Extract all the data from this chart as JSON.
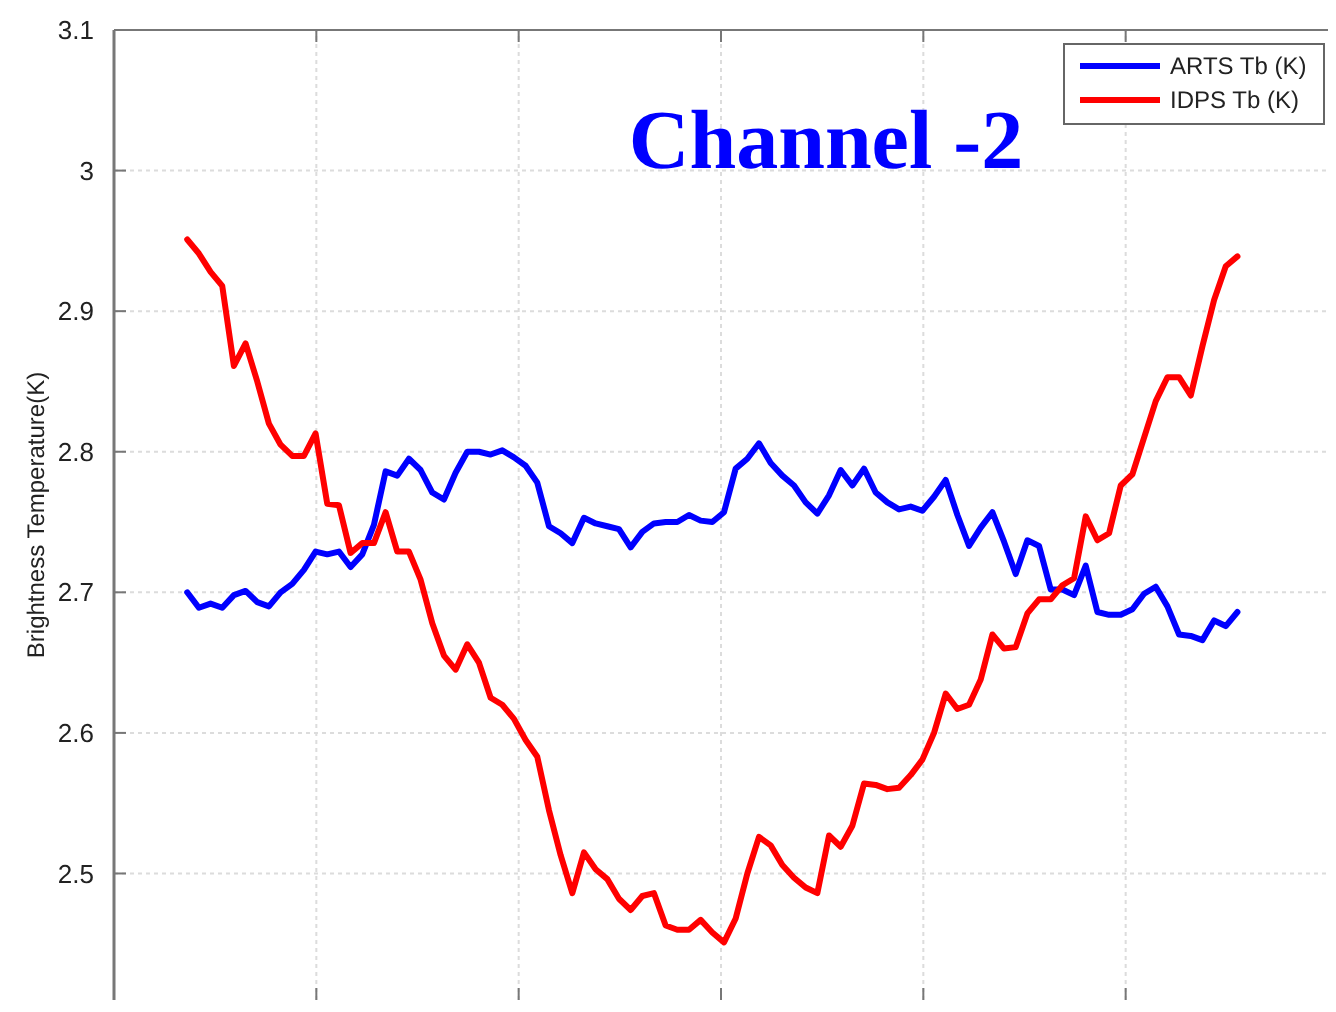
{
  "chart_data": {
    "type": "line",
    "title": "Channel -2",
    "ylabel": "Brightness Temperature(K)",
    "categories": [
      null,
      null,
      null,
      null,
      null,
      null,
      null,
      null,
      null,
      null,
      null,
      null,
      null,
      null,
      null,
      null,
      null,
      null,
      null,
      null,
      null,
      null,
      null,
      null,
      null,
      null,
      null,
      null,
      null,
      null,
      null,
      null,
      null,
      null,
      null,
      null,
      null,
      null,
      null,
      null,
      null,
      null,
      null,
      null,
      null,
      null,
      null,
      null,
      null,
      null,
      null,
      null,
      null,
      null,
      null,
      null,
      null,
      null,
      null,
      null,
      null,
      null,
      null,
      null,
      null,
      null,
      null,
      null,
      null,
      null,
      null,
      null,
      null,
      null,
      null,
      null,
      null,
      null,
      null,
      null,
      null,
      null,
      null,
      null,
      null,
      null,
      null,
      null,
      null,
      null,
      null
    ],
    "ylim": [
      2.41,
      3.1
    ],
    "yticks": [
      2.5,
      2.6,
      2.7,
      2.8,
      2.9,
      3,
      3.1
    ],
    "grid": true,
    "legend": "top right",
    "line_style": "solid",
    "series": [
      {
        "name": "ARTS Tb (K)",
        "color": "#0000ff",
        "values": [
          2.7,
          2.689,
          2.692,
          2.689,
          2.698,
          2.701,
          2.693,
          2.69,
          2.7,
          2.706,
          2.716,
          2.729,
          2.727,
          2.729,
          2.718,
          2.727,
          2.748,
          2.786,
          2.783,
          2.795,
          2.787,
          2.771,
          2.766,
          2.785,
          2.8,
          2.8,
          2.798,
          2.801,
          2.796,
          2.79,
          2.778,
          2.747,
          2.742,
          2.735,
          2.753,
          2.749,
          2.747,
          2.745,
          2.732,
          2.743,
          2.749,
          2.75,
          2.75,
          2.755,
          2.751,
          2.75,
          2.757,
          2.788,
          2.795,
          2.806,
          2.792,
          2.783,
          2.776,
          2.764,
          2.756,
          2.769,
          2.787,
          2.776,
          2.788,
          2.771,
          2.764,
          2.759,
          2.761,
          2.758,
          2.768,
          2.78,
          2.755,
          2.733,
          2.746,
          2.757,
          2.736,
          2.713,
          2.737,
          2.733,
          2.702,
          2.702,
          2.698,
          2.719,
          2.686,
          2.684,
          2.684,
          2.688,
          2.699,
          2.704,
          2.69,
          2.67,
          2.669,
          2.666,
          2.68,
          2.676,
          2.686
        ]
      },
      {
        "name": "IDPS Tb (K)",
        "color": "#ff0000",
        "values": [
          2.951,
          2.941,
          2.928,
          2.918,
          2.861,
          2.877,
          2.85,
          2.82,
          2.805,
          2.797,
          2.797,
          2.813,
          2.763,
          2.762,
          2.728,
          2.735,
          2.735,
          2.757,
          2.729,
          2.729,
          2.709,
          2.678,
          2.655,
          2.645,
          2.663,
          2.65,
          2.625,
          2.62,
          2.61,
          2.595,
          2.583,
          2.545,
          2.513,
          2.486,
          2.515,
          2.503,
          2.496,
          2.482,
          2.474,
          2.484,
          2.486,
          2.463,
          2.46,
          2.46,
          2.467,
          2.458,
          2.451,
          2.468,
          2.5,
          2.526,
          2.52,
          2.506,
          2.497,
          2.49,
          2.486,
          2.527,
          2.519,
          2.534,
          2.564,
          2.563,
          2.56,
          2.561,
          2.57,
          2.581,
          2.6,
          2.628,
          2.617,
          2.62,
          2.638,
          2.67,
          2.66,
          2.661,
          2.685,
          2.695,
          2.695,
          2.705,
          2.71,
          2.754,
          2.737,
          2.742,
          2.776,
          2.784,
          2.81,
          2.836,
          2.853,
          2.853,
          2.84,
          2.875,
          2.908,
          2.932,
          2.939
        ]
      }
    ]
  }
}
